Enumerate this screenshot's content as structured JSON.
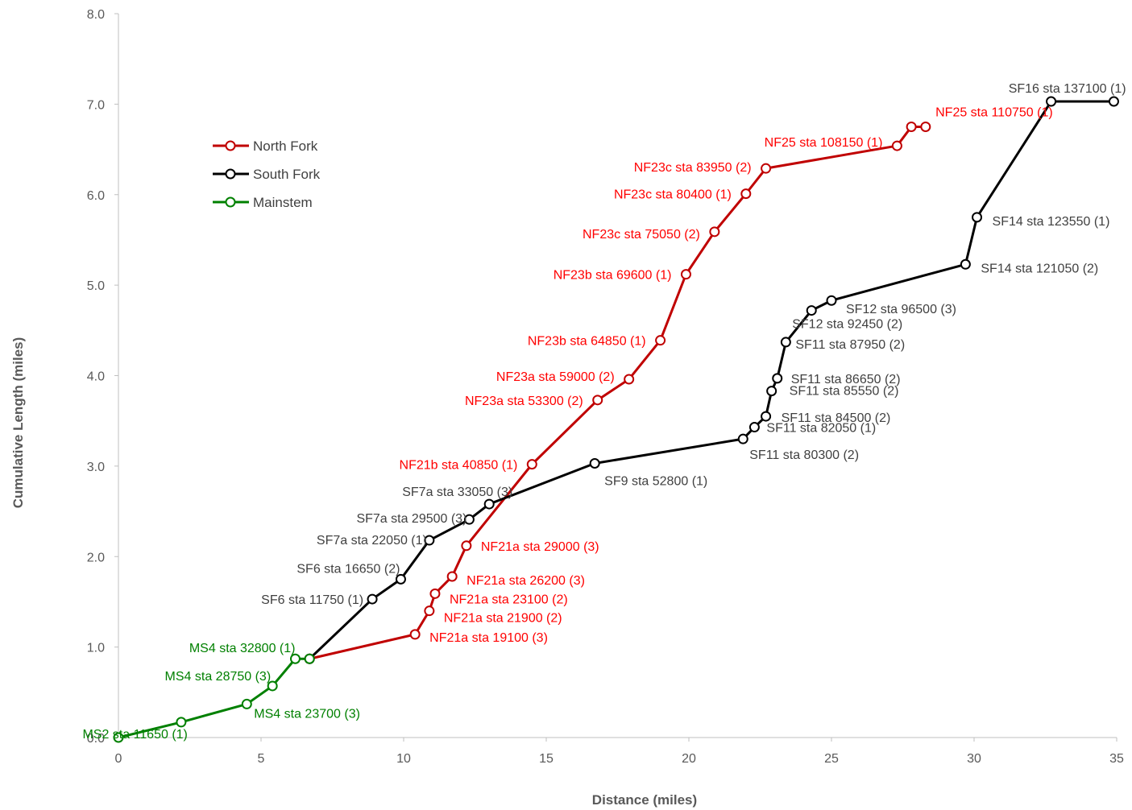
{
  "chart_data": {
    "type": "line",
    "xlabel": "Distance (miles)",
    "ylabel": "Cumulative Length (miles)",
    "xlim": [
      0,
      35
    ],
    "ylim": [
      0,
      8
    ],
    "xticks": [
      "0",
      "5",
      "10",
      "15",
      "20",
      "25",
      "30",
      "35"
    ],
    "yticks": [
      "0.0",
      "1.0",
      "2.0",
      "3.0",
      "4.0",
      "5.0",
      "6.0",
      "7.0",
      "8.0"
    ],
    "grid": false,
    "legend": "left",
    "series": [
      {
        "name": "North Fork",
        "color": "#c00000",
        "label_color": "#ff0000",
        "points": [
          {
            "x": 6.7,
            "y": 0.87
          },
          {
            "x": 10.4,
            "y": 1.14,
            "label": "NF21a sta 19100 (3)"
          },
          {
            "x": 10.9,
            "y": 1.4,
            "label": "NF21a sta 21900 (2)"
          },
          {
            "x": 11.1,
            "y": 1.59,
            "label": "NF21a sta 23100 (2)"
          },
          {
            "x": 11.7,
            "y": 1.78,
            "label": "NF21a sta 26200 (3)"
          },
          {
            "x": 12.2,
            "y": 2.12,
            "label": "NF21a sta 29000 (3)"
          },
          {
            "x": 14.5,
            "y": 3.02,
            "label": "NF21b sta 40850 (1)"
          },
          {
            "x": 16.8,
            "y": 3.73,
            "label": "NF23a sta 53300 (2)"
          },
          {
            "x": 17.9,
            "y": 3.96,
            "label": "NF23a sta 59000 (2)"
          },
          {
            "x": 19.0,
            "y": 4.39,
            "label": "NF23b sta 64850 (1)"
          },
          {
            "x": 19.9,
            "y": 5.12,
            "label": "NF23b sta 69600 (1)"
          },
          {
            "x": 20.9,
            "y": 5.59,
            "label": "NF23c sta 75050 (2)"
          },
          {
            "x": 22.0,
            "y": 6.01,
            "label": "NF23c sta 80400 (1)"
          },
          {
            "x": 22.7,
            "y": 6.29,
            "label": "NF23c sta 83950 (2)"
          },
          {
            "x": 27.3,
            "y": 6.54,
            "label": "NF25 sta 108150 (1)"
          },
          {
            "x": 27.8,
            "y": 6.75,
            "label": "NF25 sta 110750 (1)"
          },
          {
            "x": 28.3,
            "y": 6.75
          }
        ]
      },
      {
        "name": "South Fork",
        "color": "#000000",
        "label_color": "#404040",
        "points": [
          {
            "x": 6.7,
            "y": 0.87
          },
          {
            "x": 8.9,
            "y": 1.53,
            "label": "SF6 sta 11750 (1)"
          },
          {
            "x": 9.9,
            "y": 1.75,
            "label": "SF6 sta 16650 (2)"
          },
          {
            "x": 10.9,
            "y": 2.18,
            "label": "SF7a sta 22050 (1)"
          },
          {
            "x": 12.3,
            "y": 2.41,
            "label": "SF7a sta 29500 (3)"
          },
          {
            "x": 13.0,
            "y": 2.58,
            "label": "SF7a sta 33050 (3)"
          },
          {
            "x": 16.7,
            "y": 3.03,
            "label": "SF9 sta 52800 (1)"
          },
          {
            "x": 21.9,
            "y": 3.3,
            "label": "SF11 sta 80300 (2)"
          },
          {
            "x": 22.3,
            "y": 3.43,
            "label": "SF11 sta 82050 (1)"
          },
          {
            "x": 22.7,
            "y": 3.55,
            "label": "SF11 sta 84500 (2)"
          },
          {
            "x": 22.9,
            "y": 3.83,
            "label": "SF11 sta 85550 (2)"
          },
          {
            "x": 23.1,
            "y": 3.97,
            "label": "SF11 sta 86650 (2)"
          },
          {
            "x": 23.4,
            "y": 4.37,
            "label": "SF11 sta 87950 (2)"
          },
          {
            "x": 24.3,
            "y": 4.72,
            "label": "SF12 sta 92450 (2)"
          },
          {
            "x": 25.0,
            "y": 4.83,
            "label": "SF12 sta 96500 (3)"
          },
          {
            "x": 29.7,
            "y": 5.23,
            "label": "SF14 sta 121050 (2)"
          },
          {
            "x": 30.1,
            "y": 5.75,
            "label": "SF14 sta 123550 (1)"
          },
          {
            "x": 32.7,
            "y": 7.03,
            "label": "SF16 sta 137100 (1)"
          },
          {
            "x": 34.9,
            "y": 7.03
          }
        ]
      },
      {
        "name": "Mainstem",
        "color": "#008000",
        "label_color": "#008000",
        "points": [
          {
            "x": 0.0,
            "y": 0.0
          },
          {
            "x": 2.2,
            "y": 0.17,
            "label": "MS2 sta 11650 (1)"
          },
          {
            "x": 4.5,
            "y": 0.37,
            "label": "MS4 sta 23700 (3)"
          },
          {
            "x": 5.4,
            "y": 0.57,
            "label": "MS4 sta 28750 (3)"
          },
          {
            "x": 6.2,
            "y": 0.87,
            "label": "MS4 sta 32800 (1)"
          },
          {
            "x": 6.7,
            "y": 0.87
          }
        ]
      }
    ]
  }
}
